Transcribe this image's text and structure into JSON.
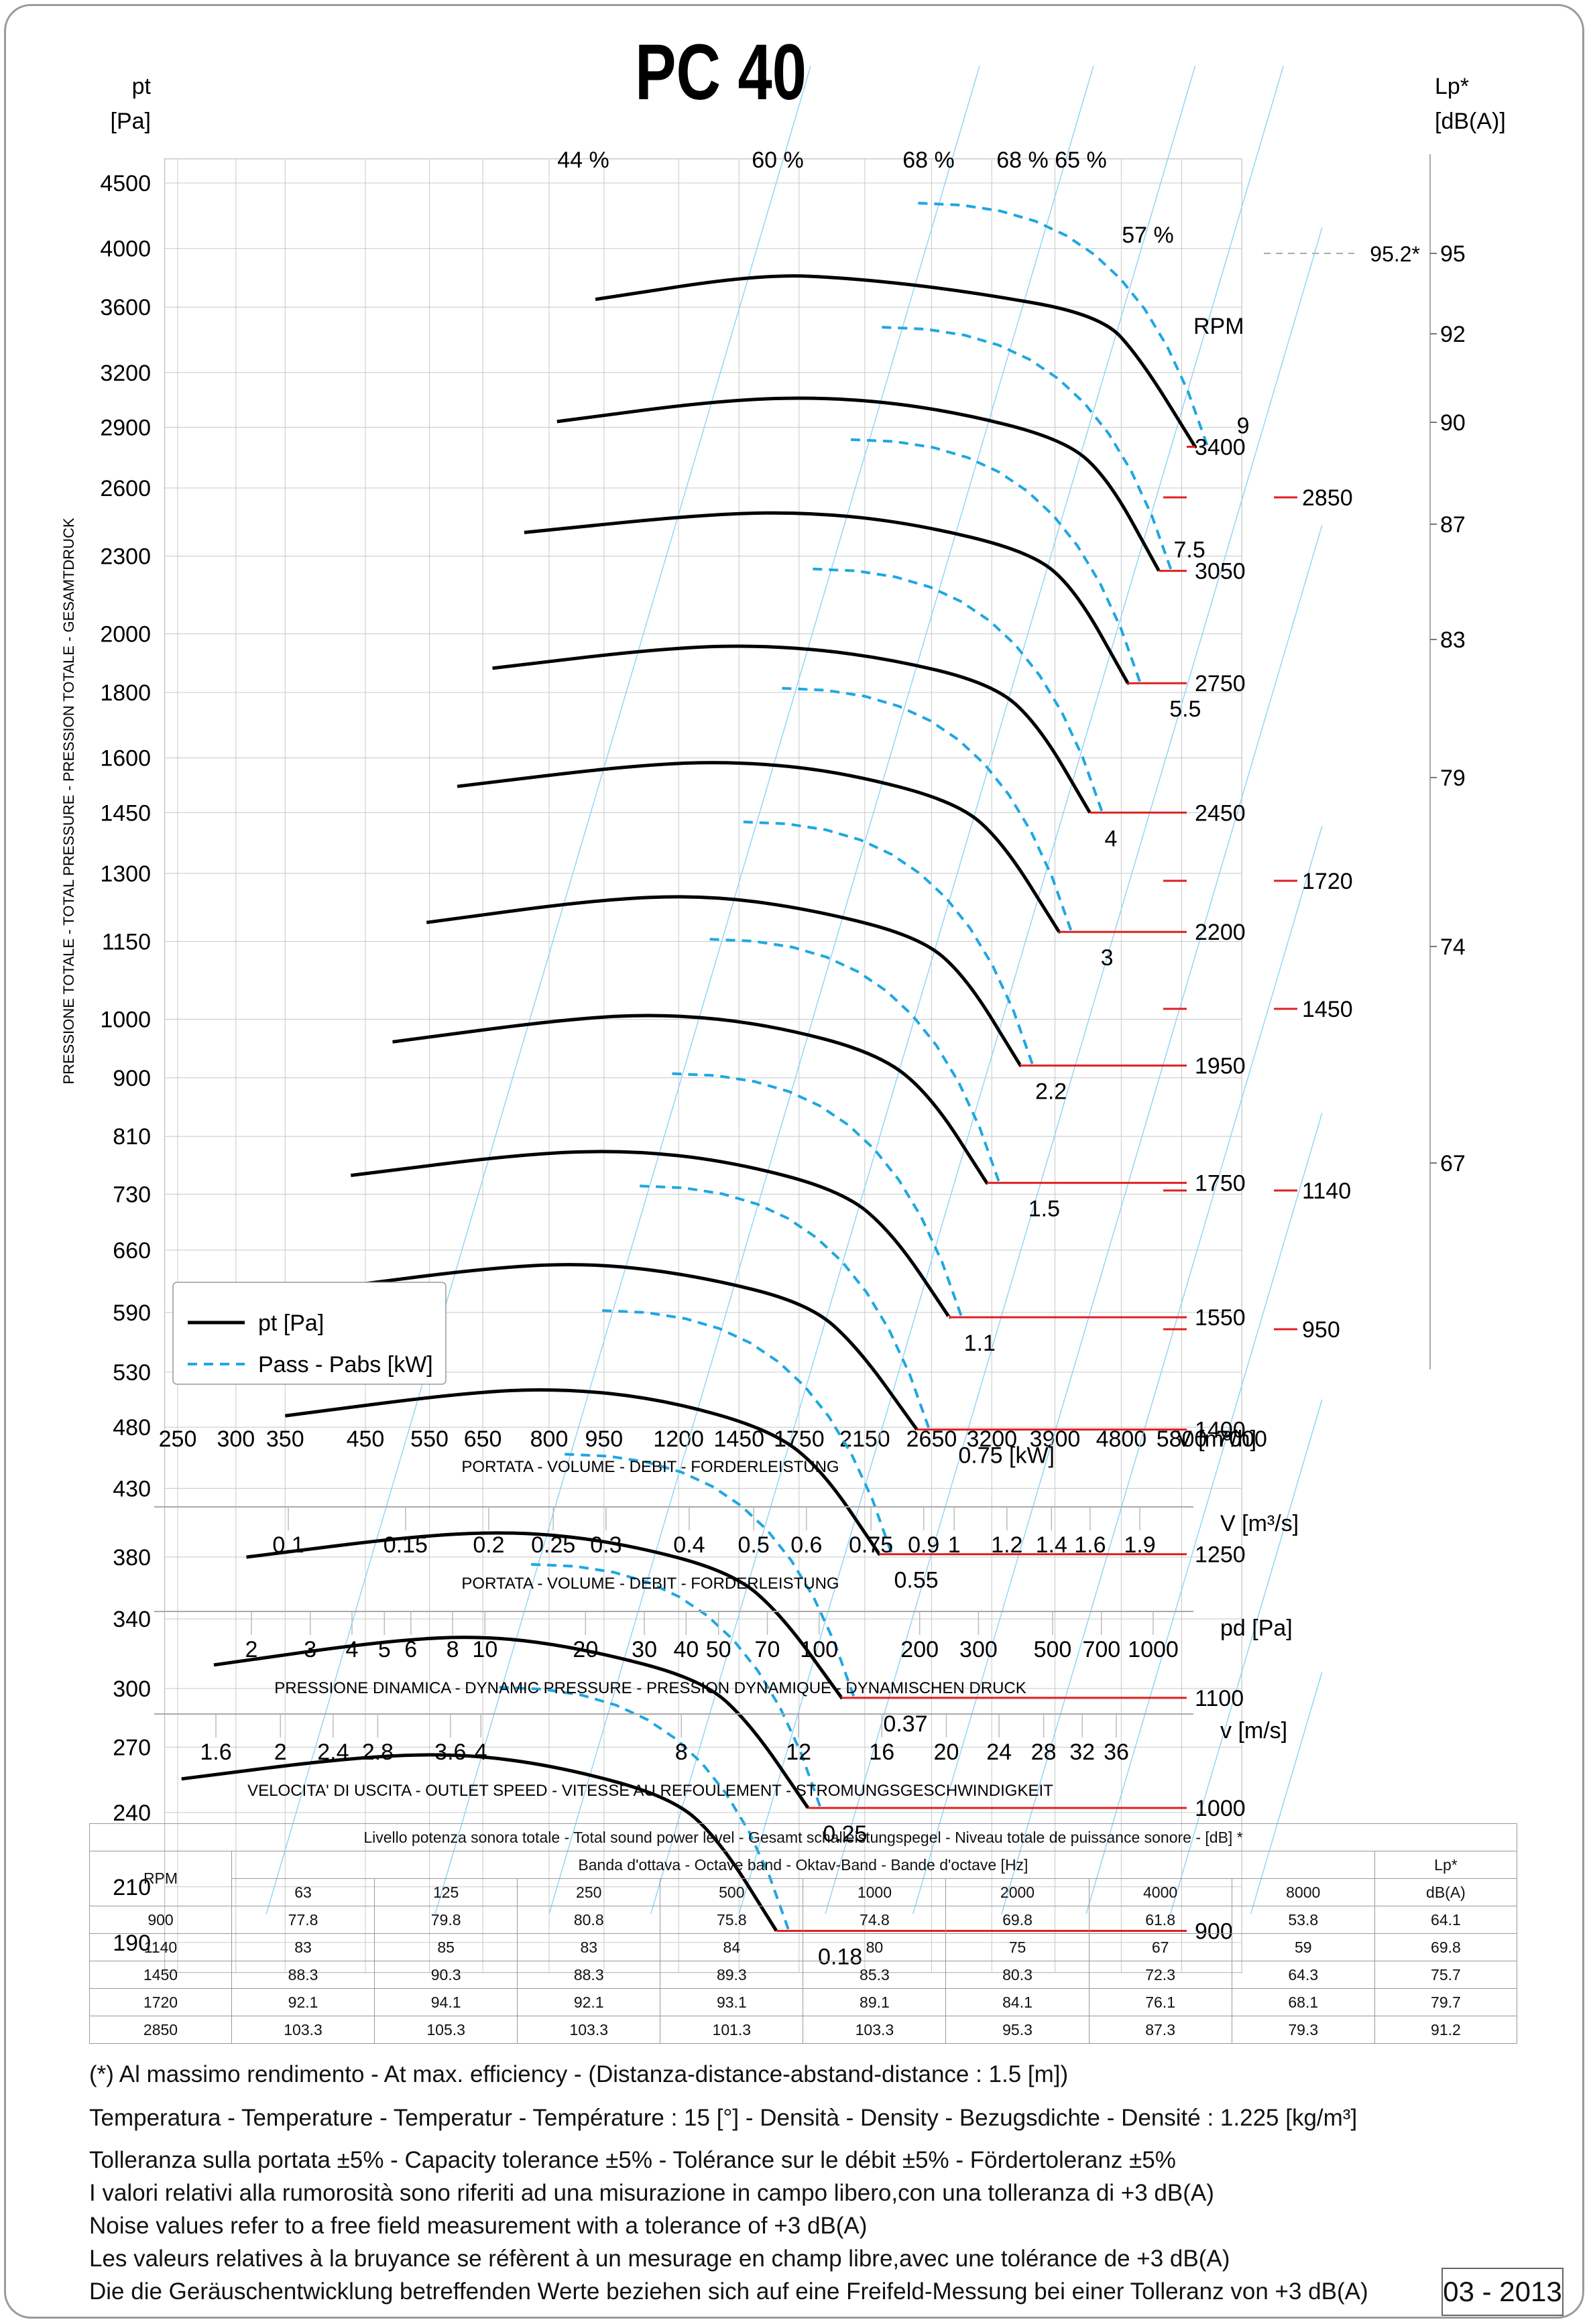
{
  "title": "PC 40",
  "left_axis": {
    "unit_top": "pt",
    "unit_bottom": "[Pa]",
    "side_label": "PRESSIONE TOTALE - TOTAL PRESSURE - PRESSION TOTALE - GESAMTDRUCK"
  },
  "right_axis": {
    "unit_top": "Lp*",
    "unit_bottom": "[dB(A)]",
    "ticks": [
      "95",
      "92",
      "90",
      "87",
      "83",
      "79",
      "74",
      "67"
    ],
    "marker": "95.2*"
  },
  "legend": {
    "pt": "pt [Pa]",
    "pass": "Pass - Pabs [kW]"
  },
  "chart_data": {
    "type": "line",
    "title": "PC 40",
    "xlabel": "PORTATA - VOLUME - DEBIT - FORDERLEISTUNG",
    "xunit": "V [m³/h]",
    "ylabel": "PRESSIONE TOTALE - TOTAL PRESSURE - PRESSION TOTALE - GESAMTDRUCK",
    "yunit": "pt [Pa]",
    "xscale": "log",
    "yscale": "log",
    "x_ticks": [
      "250",
      "300",
      "350",
      "450",
      "550",
      "650",
      "800",
      "950",
      "1200",
      "1450",
      "1750",
      "2150",
      "2650",
      "3200",
      "3900",
      "4800",
      "5800",
      "7000"
    ],
    "y_ticks": [
      "4500",
      "4000",
      "3600",
      "3200",
      "2900",
      "2600",
      "2300",
      "2000",
      "1800",
      "1600",
      "1450",
      "1300",
      "1150",
      "1000",
      "900",
      "810",
      "730",
      "660",
      "590",
      "530",
      "480",
      "430",
      "380",
      "340",
      "300",
      "270",
      "240",
      "210",
      "190"
    ],
    "efficiency_labels": [
      "44 %",
      "60 %",
      "68 %",
      "68 %",
      "65 %",
      "57 %"
    ],
    "rpm_header": "RPM",
    "rpm_curves": [
      {
        "rpm": "3400",
        "points": [
          [
            925,
            3650
          ],
          [
            1550,
            3820
          ],
          [
            2100,
            3790
          ],
          [
            3000,
            3700
          ],
          [
            4500,
            3550
          ],
          [
            5100,
            3280
          ],
          [
            6050,
            2800
          ]
        ]
      },
      {
        "rpm": "3050",
        "points": [
          [
            820,
            2930
          ],
          [
            1400,
            3050
          ],
          [
            2000,
            3060
          ],
          [
            2800,
            2990
          ],
          [
            4000,
            2840
          ],
          [
            4600,
            2650
          ],
          [
            5400,
            2240
          ]
        ]
      },
      {
        "rpm": "2750",
        "points": [
          [
            740,
            2400
          ],
          [
            1300,
            2480
          ],
          [
            1800,
            2490
          ],
          [
            2500,
            2440
          ],
          [
            3600,
            2320
          ],
          [
            4150,
            2170
          ],
          [
            4900,
            1830
          ]
        ]
      },
      {
        "rpm": "2450",
        "points": [
          [
            670,
            1880
          ],
          [
            1150,
            1950
          ],
          [
            1600,
            1960
          ],
          [
            2250,
            1920
          ],
          [
            3200,
            1830
          ],
          [
            3700,
            1700
          ],
          [
            4350,
            1450
          ]
        ]
      },
      {
        "rpm": "2200",
        "points": [
          [
            600,
            1520
          ],
          [
            1050,
            1580
          ],
          [
            1450,
            1590
          ],
          [
            2000,
            1560
          ],
          [
            2850,
            1480
          ],
          [
            3300,
            1380
          ],
          [
            3950,
            1170
          ]
        ]
      },
      {
        "rpm": "1950",
        "points": [
          [
            545,
            1190
          ],
          [
            930,
            1240
          ],
          [
            1300,
            1250
          ],
          [
            1800,
            1220
          ],
          [
            2550,
            1160
          ],
          [
            2950,
            1080
          ],
          [
            3500,
            920
          ]
        ]
      },
      {
        "rpm": "1750",
        "points": [
          [
            490,
            960
          ],
          [
            840,
            1000
          ],
          [
            1150,
            1010
          ],
          [
            1600,
            990
          ],
          [
            2250,
            940
          ],
          [
            2650,
            870
          ],
          [
            3150,
            745
          ]
        ]
      },
      {
        "rpm": "1550",
        "points": [
          [
            430,
            755
          ],
          [
            740,
            785
          ],
          [
            1020,
            790
          ],
          [
            1400,
            775
          ],
          [
            2000,
            735
          ],
          [
            2350,
            680
          ],
          [
            2800,
            585
          ]
        ]
      },
      {
        "rpm": "1400",
        "points": [
          [
            390,
            615
          ],
          [
            670,
            640
          ],
          [
            920,
            645
          ],
          [
            1280,
            630
          ],
          [
            1800,
            600
          ],
          [
            2100,
            555
          ],
          [
            2530,
            478
          ]
        ]
      },
      {
        "rpm": "1250",
        "points": [
          [
            350,
            490
          ],
          [
            600,
            510
          ],
          [
            820,
            515
          ],
          [
            1140,
            505
          ],
          [
            1600,
            478
          ],
          [
            1880,
            445
          ],
          [
            2250,
            382
          ]
        ]
      },
      {
        "rpm": "1100",
        "points": [
          [
            310,
            380
          ],
          [
            530,
            395
          ],
          [
            730,
            398
          ],
          [
            1000,
            390
          ],
          [
            1420,
            370
          ],
          [
            1660,
            342
          ],
          [
            2000,
            295
          ]
        ]
      },
      {
        "rpm": "1000",
        "points": [
          [
            280,
            313
          ],
          [
            480,
            327
          ],
          [
            660,
            330
          ],
          [
            900,
            322
          ],
          [
            1290,
            305
          ],
          [
            1500,
            282
          ],
          [
            1800,
            242
          ]
        ]
      },
      {
        "rpm": "900",
        "points": [
          [
            253,
            255
          ],
          [
            430,
            265
          ],
          [
            600,
            267
          ],
          [
            820,
            261
          ],
          [
            1170,
            247
          ],
          [
            1360,
            229
          ],
          [
            1630,
            194
          ]
        ]
      }
    ],
    "power_labels": [
      "9",
      "7.5",
      "5.5",
      "4",
      "3",
      "2.2",
      "1.5",
      "1.1",
      "0.75  [kW]",
      "0.55",
      "0.37",
      "0.25",
      "0.18"
    ],
    "rpm_extra": [
      "2850",
      "1720",
      "1450",
      "1140",
      "950"
    ]
  },
  "scales": [
    {
      "unit": "V  [m³/s]",
      "caption": "PORTATA - VOLUME - DEBIT - FORDERLEISTUNG",
      "labels": [
        "0.1",
        "0.15",
        "0.2",
        "0.25",
        "0.3",
        "0.4",
        "0.5",
        "0.6",
        "0.75",
        "0.9",
        "1",
        "1.2",
        "1.4",
        "1.6",
        "1.9"
      ]
    },
    {
      "unit": "pd  [Pa]",
      "caption": "PRESSIONE DINAMICA - DYNAMIC PRESSURE - PRESSION DYNAMIQUE - DYNAMISCHEN DRUCK",
      "labels": [
        "2",
        "3",
        "4",
        "5",
        "6",
        "8",
        "10",
        "20",
        "30",
        "40",
        "50",
        "70",
        "100",
        "200",
        "300",
        "500",
        "700",
        "1000"
      ]
    },
    {
      "unit": "v  [m/s]",
      "caption": "VELOCITA' DI USCITA - OUTLET SPEED - VITESSE AU REFOULEMENT - STROMUNGSGESCHWINDIGKEIT",
      "labels": [
        "1.6",
        "2",
        "2.4",
        "2.8",
        "3.6",
        "4",
        "8",
        "12",
        "16",
        "20",
        "24",
        "28",
        "32",
        "36"
      ]
    }
  ],
  "sound_table": {
    "title": "Livello potenza sonora totale - Total sound power level - Gesamt schalleistungspegel - Niveau totale de puissance sonore - [dB]   *",
    "band_header": "Banda d'ottava - Octave band - Oktav-Band - Bande d'octave [Hz]",
    "rpm_header": "RPM",
    "lp_header_1": "Lp*",
    "lp_header_2": "dB(A)",
    "bands": [
      "63",
      "125",
      "250",
      "500",
      "1000",
      "2000",
      "4000",
      "8000"
    ],
    "rows": [
      {
        "rpm": "900",
        "values": [
          "77.8",
          "79.8",
          "80.8",
          "75.8",
          "74.8",
          "69.8",
          "61.8",
          "53.8"
        ],
        "lp": "64.1"
      },
      {
        "rpm": "1140",
        "values": [
          "83",
          "85",
          "83",
          "84",
          "80",
          "75",
          "67",
          "59"
        ],
        "lp": "69.8"
      },
      {
        "rpm": "1450",
        "values": [
          "88.3",
          "90.3",
          "88.3",
          "89.3",
          "85.3",
          "80.3",
          "72.3",
          "64.3"
        ],
        "lp": "75.7"
      },
      {
        "rpm": "1720",
        "values": [
          "92.1",
          "94.1",
          "92.1",
          "93.1",
          "89.1",
          "84.1",
          "76.1",
          "68.1"
        ],
        "lp": "79.7"
      },
      {
        "rpm": "2850",
        "values": [
          "103.3",
          "105.3",
          "103.3",
          "101.3",
          "103.3",
          "95.3",
          "87.3",
          "79.3"
        ],
        "lp": "91.2"
      }
    ]
  },
  "notes": {
    "efficiency": "(*) Al massimo rendimento - At max. efficiency - (Distanza-distance-abstand-distance : 1.5 [m])",
    "temperature": "Temperatura - Temperature - Temperatur - Température : 15 [°]  -  Densità - Density - Bezugsdichte - Densité : 1.225 [kg/m³]",
    "tolerance": [
      "Tolleranza sulla portata  ±5% - Capacity tolerance ±5% - Tolérance sur le débit ±5% - Fördertoleranz ±5%",
      "I valori relativi alla rumorosità sono riferiti ad una misurazione in campo libero,con una tolleranza di +3 dB(A)",
      "Noise values refer to a free field measurement with a tolerance of +3 dB(A)",
      "Les valeurs relatives à la bruyance se réfèrent à un mesurage en champ libre,avec une tolérance de +3 dB(A)",
      "Die die Geräuschentwicklung betreffenden Werte beziehen sich auf eine Freifeld-Messung bei einer Tolleranz von +3 dB(A)"
    ],
    "date": "03 - 2013"
  }
}
